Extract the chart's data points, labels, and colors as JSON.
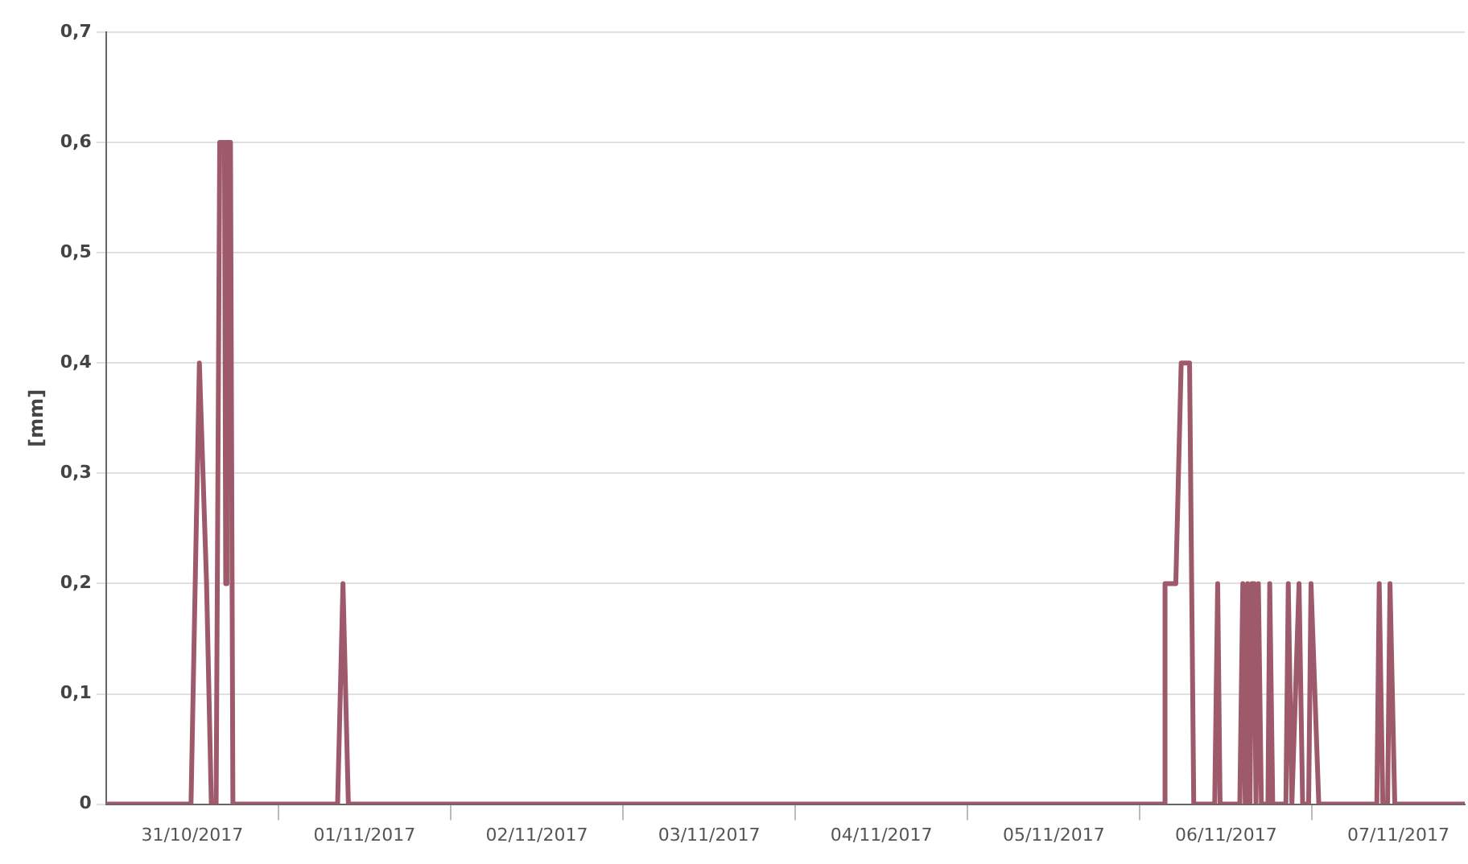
{
  "chart_data": {
    "type": "line",
    "ylabel": "[mm]",
    "grid": "y",
    "marker": "none",
    "line_style": "solid",
    "xlim": [
      "2017-10-31T00:00",
      "2017-11-07T21:15"
    ],
    "xticks": [
      {
        "value": "2017-10-31T12:00",
        "label": "31/10/2017"
      },
      {
        "value": "2017-11-01T00:00",
        "label": null
      },
      {
        "value": "2017-11-01T12:00",
        "label": "01/11/2017"
      },
      {
        "value": "2017-11-02T00:00",
        "label": null
      },
      {
        "value": "2017-11-02T12:00",
        "label": "02/11/2017"
      },
      {
        "value": "2017-11-03T00:00",
        "label": null
      },
      {
        "value": "2017-11-03T12:00",
        "label": "03/11/2017"
      },
      {
        "value": "2017-11-04T00:00",
        "label": null
      },
      {
        "value": "2017-11-04T12:00",
        "label": "04/11/2017"
      },
      {
        "value": "2017-11-05T00:00",
        "label": null
      },
      {
        "value": "2017-11-05T12:00",
        "label": "05/11/2017"
      },
      {
        "value": "2017-11-06T00:00",
        "label": null
      },
      {
        "value": "2017-11-06T12:00",
        "label": "06/11/2017"
      },
      {
        "value": "2017-11-07T00:00",
        "label": null
      },
      {
        "value": "2017-11-07T12:00",
        "label": "07/11/2017"
      }
    ],
    "ylim": [
      0,
      0.7
    ],
    "yticks": [
      {
        "value": 0,
        "label": "0"
      },
      {
        "value": 0.1,
        "label": "0,1"
      },
      {
        "value": 0.2,
        "label": "0,2"
      },
      {
        "value": 0.3,
        "label": "0,3"
      },
      {
        "value": 0.4,
        "label": "0,4"
      },
      {
        "value": 0.5,
        "label": "0,5"
      },
      {
        "value": 0.6,
        "label": "0,6"
      },
      {
        "value": 0.7,
        "label": "0,7"
      }
    ],
    "series": [
      {
        "color": "#9e5a6b",
        "x": [
          "2017-10-31T00:00",
          "2017-10-31T11:50",
          "2017-10-31T13:00",
          "2017-10-31T14:00",
          "2017-10-31T14:40",
          "2017-10-31T15:20",
          "2017-10-31T15:50",
          "2017-10-31T16:30",
          "2017-10-31T16:40",
          "2017-10-31T16:50",
          "2017-10-31T17:20",
          "2017-10-31T17:40",
          "2017-11-01T08:15",
          "2017-11-01T09:00",
          "2017-11-01T09:45",
          "2017-11-06T03:25",
          "2017-11-06T03:30",
          "2017-11-06T05:00",
          "2017-11-06T05:45",
          "2017-11-06T06:55",
          "2017-11-06T07:30",
          "2017-11-06T10:25",
          "2017-11-06T10:50",
          "2017-11-06T11:10",
          "2017-11-06T13:55",
          "2017-11-06T14:20",
          "2017-11-06T14:40",
          "2017-11-06T15:00",
          "2017-11-06T15:20",
          "2017-11-06T15:35",
          "2017-11-06T15:55",
          "2017-11-06T16:10",
          "2017-11-06T16:30",
          "2017-11-06T16:55",
          "2017-11-06T17:50",
          "2017-11-06T18:05",
          "2017-11-06T18:30",
          "2017-11-06T20:20",
          "2017-11-06T20:40",
          "2017-11-06T21:10",
          "2017-11-06T22:10",
          "2017-11-06T22:40",
          "2017-11-06T23:30",
          "2017-11-06T23:50",
          "2017-11-07T00:55",
          "2017-11-07T09:00",
          "2017-11-07T09:20",
          "2017-11-07T09:50",
          "2017-11-07T10:30",
          "2017-11-07T10:50",
          "2017-11-07T11:30",
          "2017-11-07T21:15"
        ],
        "values": [
          0,
          0,
          0.4,
          0.2,
          0,
          0,
          0.6,
          0.6,
          0.2,
          0.6,
          0.6,
          0,
          0,
          0.2,
          0,
          0,
          0.2,
          0.2,
          0.4,
          0.4,
          0,
          0,
          0.2,
          0,
          0,
          0.2,
          0,
          0.2,
          0,
          0.2,
          0.2,
          0,
          0.2,
          0,
          0,
          0.2,
          0,
          0,
          0.2,
          0,
          0.2,
          0,
          0,
          0.2,
          0,
          0,
          0.2,
          0,
          0,
          0.2,
          0,
          0
        ]
      }
    ]
  }
}
